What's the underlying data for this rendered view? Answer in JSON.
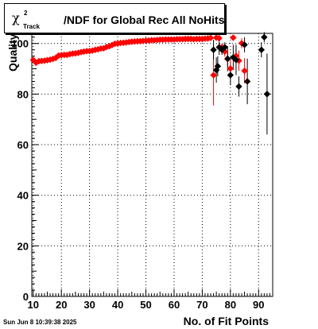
{
  "chart_data": {
    "type": "scatter",
    "title": {
      "symbol": "χ",
      "superscript": "2",
      "subscript": "Track",
      "text": "/NDF for Global Rec All NoHits"
    },
    "xlabel": "No. of Fit Points",
    "ylabel": "Quality",
    "xlim": [
      9.5,
      95
    ],
    "ylim": [
      0,
      104
    ],
    "xticks": [
      10,
      20,
      30,
      40,
      50,
      60,
      70,
      80,
      90
    ],
    "yticks": [
      0,
      20,
      40,
      60,
      80,
      100
    ],
    "grid": true,
    "series": [
      {
        "color": "#ff0000",
        "x": [
          10,
          11,
          12,
          13,
          14,
          15,
          16,
          17,
          18,
          19,
          20,
          21,
          22,
          23,
          24,
          25,
          26,
          27,
          28,
          29,
          30,
          31,
          32,
          33,
          34,
          35,
          36,
          37,
          38,
          39,
          40,
          41,
          42,
          43,
          44,
          45,
          46,
          47,
          48,
          49,
          50,
          51,
          52,
          53,
          54,
          55,
          56,
          57,
          58,
          59,
          60,
          61,
          62,
          63,
          64,
          65,
          66,
          67,
          68,
          69,
          70,
          71,
          72,
          73,
          74,
          75,
          76,
          77,
          78,
          79,
          80,
          81,
          82,
          83,
          84,
          85
        ],
        "y": [
          93.5,
          92.4,
          93.0,
          93.1,
          93.2,
          93.4,
          93.6,
          93.9,
          94.3,
          95.2,
          95.4,
          95.5,
          95.5,
          95.8,
          96.0,
          96.1,
          96.3,
          96.6,
          96.8,
          97.0,
          97.0,
          97.2,
          97.5,
          97.7,
          98.0,
          98.1,
          98.6,
          98.9,
          99.4,
          99.9,
          100.0,
          100.2,
          100.3,
          100.4,
          100.6,
          100.7,
          100.8,
          100.9,
          100.9,
          101.0,
          101.1,
          101.2,
          101.3,
          101.3,
          101.4,
          101.5,
          101.5,
          101.6,
          101.6,
          101.6,
          101.6,
          101.7,
          101.7,
          101.7,
          101.8,
          101.8,
          101.8,
          101.7,
          101.8,
          101.8,
          101.8,
          101.9,
          102.0,
          102.2,
          87.5,
          102.3,
          102.1,
          98.5,
          96.8,
          93.9,
          90.1,
          102.3,
          95.1,
          93.2,
          100.1,
          89.2
        ],
        "err": [
          0,
          0,
          0,
          0,
          0,
          0,
          0,
          0,
          0,
          0,
          0,
          0,
          0,
          0,
          0,
          0,
          0,
          0,
          0,
          0,
          0,
          0,
          0,
          0,
          0,
          0,
          0,
          0,
          0,
          0,
          0,
          0,
          0,
          0,
          0,
          0,
          0,
          0,
          0,
          0,
          0,
          0,
          0,
          0,
          0,
          0,
          0,
          0,
          0,
          0,
          0,
          0,
          0,
          0,
          0,
          0,
          0,
          0,
          0,
          0,
          0,
          0,
          0.3,
          0.4,
          12,
          0.5,
          0.6,
          1.5,
          2,
          3,
          4,
          0.8,
          3,
          4,
          2,
          5
        ]
      },
      {
        "color": "#000000",
        "x": [
          74,
          75,
          75.5,
          76,
          77,
          78,
          79,
          80,
          81,
          82,
          83,
          85,
          86,
          91,
          92,
          93
        ],
        "y": [
          97.5,
          89.5,
          91,
          98.5,
          97.5,
          98.5,
          94,
          87.5,
          94.5,
          93.5,
          83,
          99.5,
          85,
          97.5,
          102.5,
          80
        ],
        "err": [
          4,
          5,
          4,
          3,
          2,
          2,
          5,
          4,
          5,
          6,
          4,
          3,
          9,
          3,
          2,
          16
        ]
      }
    ]
  },
  "footer": {
    "timestamp": "Sun Jun  8 10:39:38 2025"
  }
}
